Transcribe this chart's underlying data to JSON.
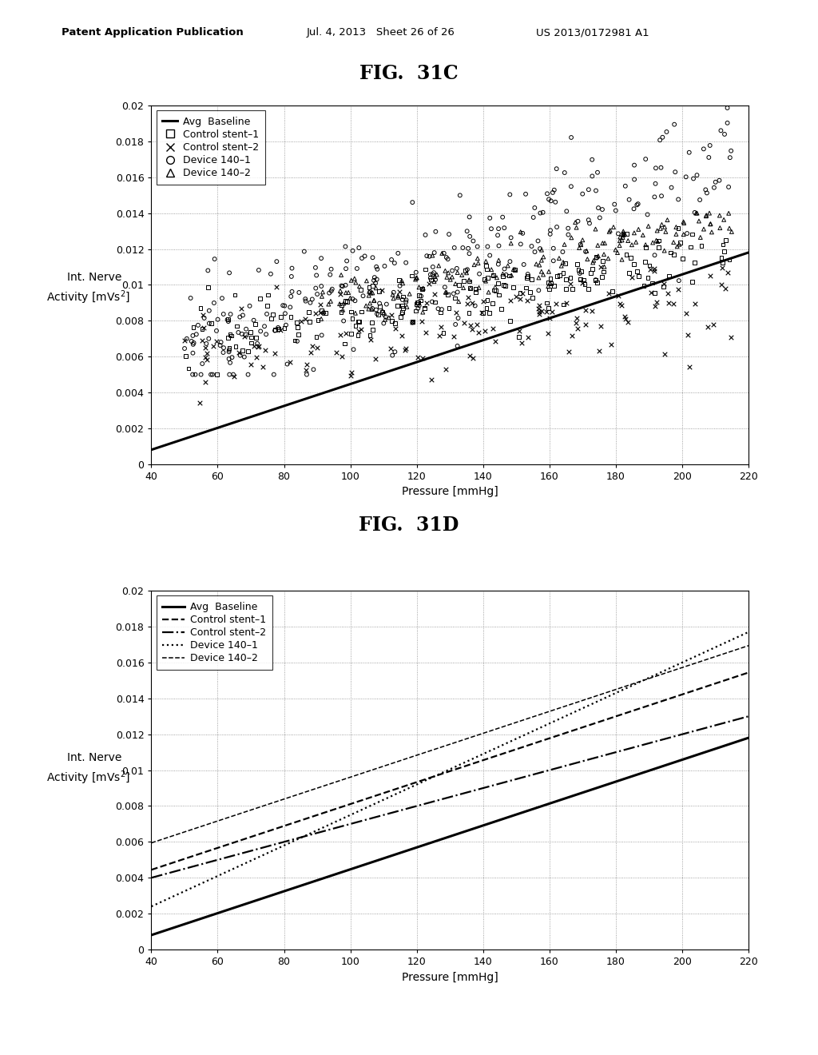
{
  "fig_title_top": "FIG.  31C",
  "fig_title_bottom": "FIG.  31D",
  "header_left": "Patent Application Publication",
  "header_mid": "Jul. 4, 2013   Sheet 26 of 26",
  "header_right": "US 2013/0172981 A1",
  "xlabel": "Pressure [mmHg]",
  "xlim": [
    40,
    220
  ],
  "ylim": [
    0,
    0.02
  ],
  "xticks": [
    40,
    60,
    80,
    100,
    120,
    140,
    160,
    180,
    200,
    220
  ],
  "yticks": [
    0,
    0.002,
    0.004,
    0.006,
    0.008,
    0.01,
    0.012,
    0.014,
    0.016,
    0.018,
    0.02
  ],
  "baseline_slope": 6.11e-05,
  "baseline_intercept": -0.00164,
  "lines_D": [
    {
      "slope": 6.11e-05,
      "intercept": -0.00164,
      "style": "-",
      "lw": 2.2
    },
    {
      "slope": 6.11e-05,
      "intercept": 0.002,
      "style": "--",
      "lw": 1.6
    },
    {
      "slope": 5e-05,
      "intercept": 0.002,
      "style": "-.",
      "lw": 1.6
    },
    {
      "slope": 8.5e-05,
      "intercept": -0.001,
      "style": ":",
      "lw": 1.6
    },
    {
      "slope": 6.11e-05,
      "intercept": 0.0035,
      "style": "--",
      "lw": 1.1
    }
  ],
  "scatter_seed": 123,
  "background_color": "#ffffff",
  "text_color": "#000000"
}
